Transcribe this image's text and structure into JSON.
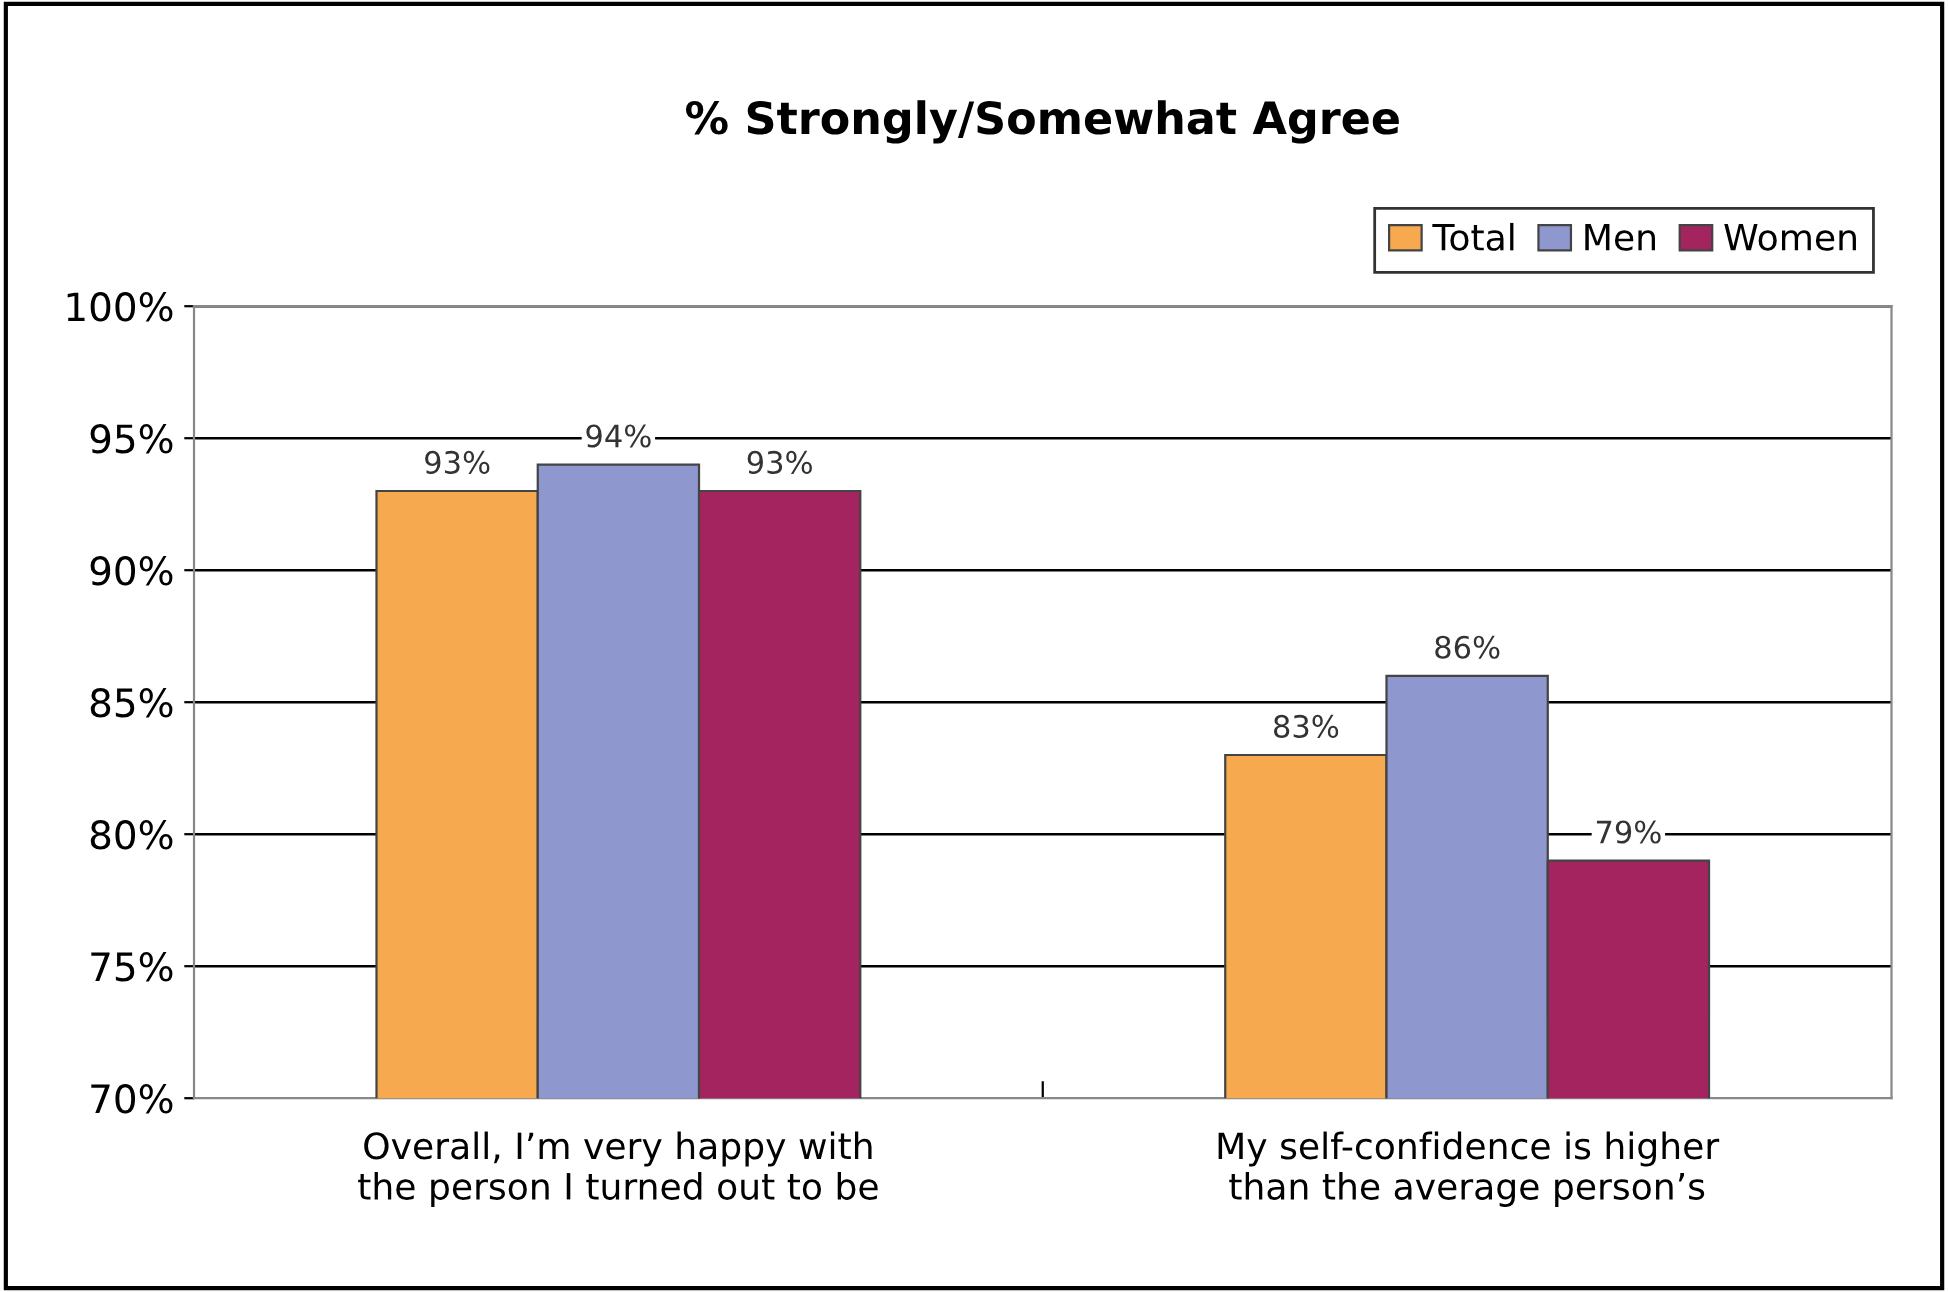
{
  "chart_data": {
    "type": "bar",
    "title": "% Strongly/Somewhat Agree",
    "categories": [
      "Overall, I’m very happy with\nthe person I turned out to be",
      "My self-confidence is higher\nthan the average person’s"
    ],
    "series": [
      {
        "name": "Total",
        "color": "#f7a94f",
        "values": [
          93,
          83
        ]
      },
      {
        "name": "Men",
        "color": "#8f97cf",
        "values": [
          94,
          86
        ]
      },
      {
        "name": "Women",
        "color": "#a3245f",
        "values": [
          93,
          79
        ]
      }
    ],
    "ylim": [
      70,
      100
    ],
    "yticks": [
      {
        "value": 70,
        "label": "70%"
      },
      {
        "value": 75,
        "label": "75%"
      },
      {
        "value": 80,
        "label": "80%"
      },
      {
        "value": 85,
        "label": "85%"
      },
      {
        "value": 90,
        "label": "90%"
      },
      {
        "value": 95,
        "label": "95%"
      },
      {
        "value": 100,
        "label": "100%"
      }
    ],
    "value_labels": [
      [
        "93%",
        "83%"
      ],
      [
        "94%",
        "86%"
      ],
      [
        "93%",
        "79%"
      ]
    ],
    "grid": "y",
    "legend": "top right"
  }
}
